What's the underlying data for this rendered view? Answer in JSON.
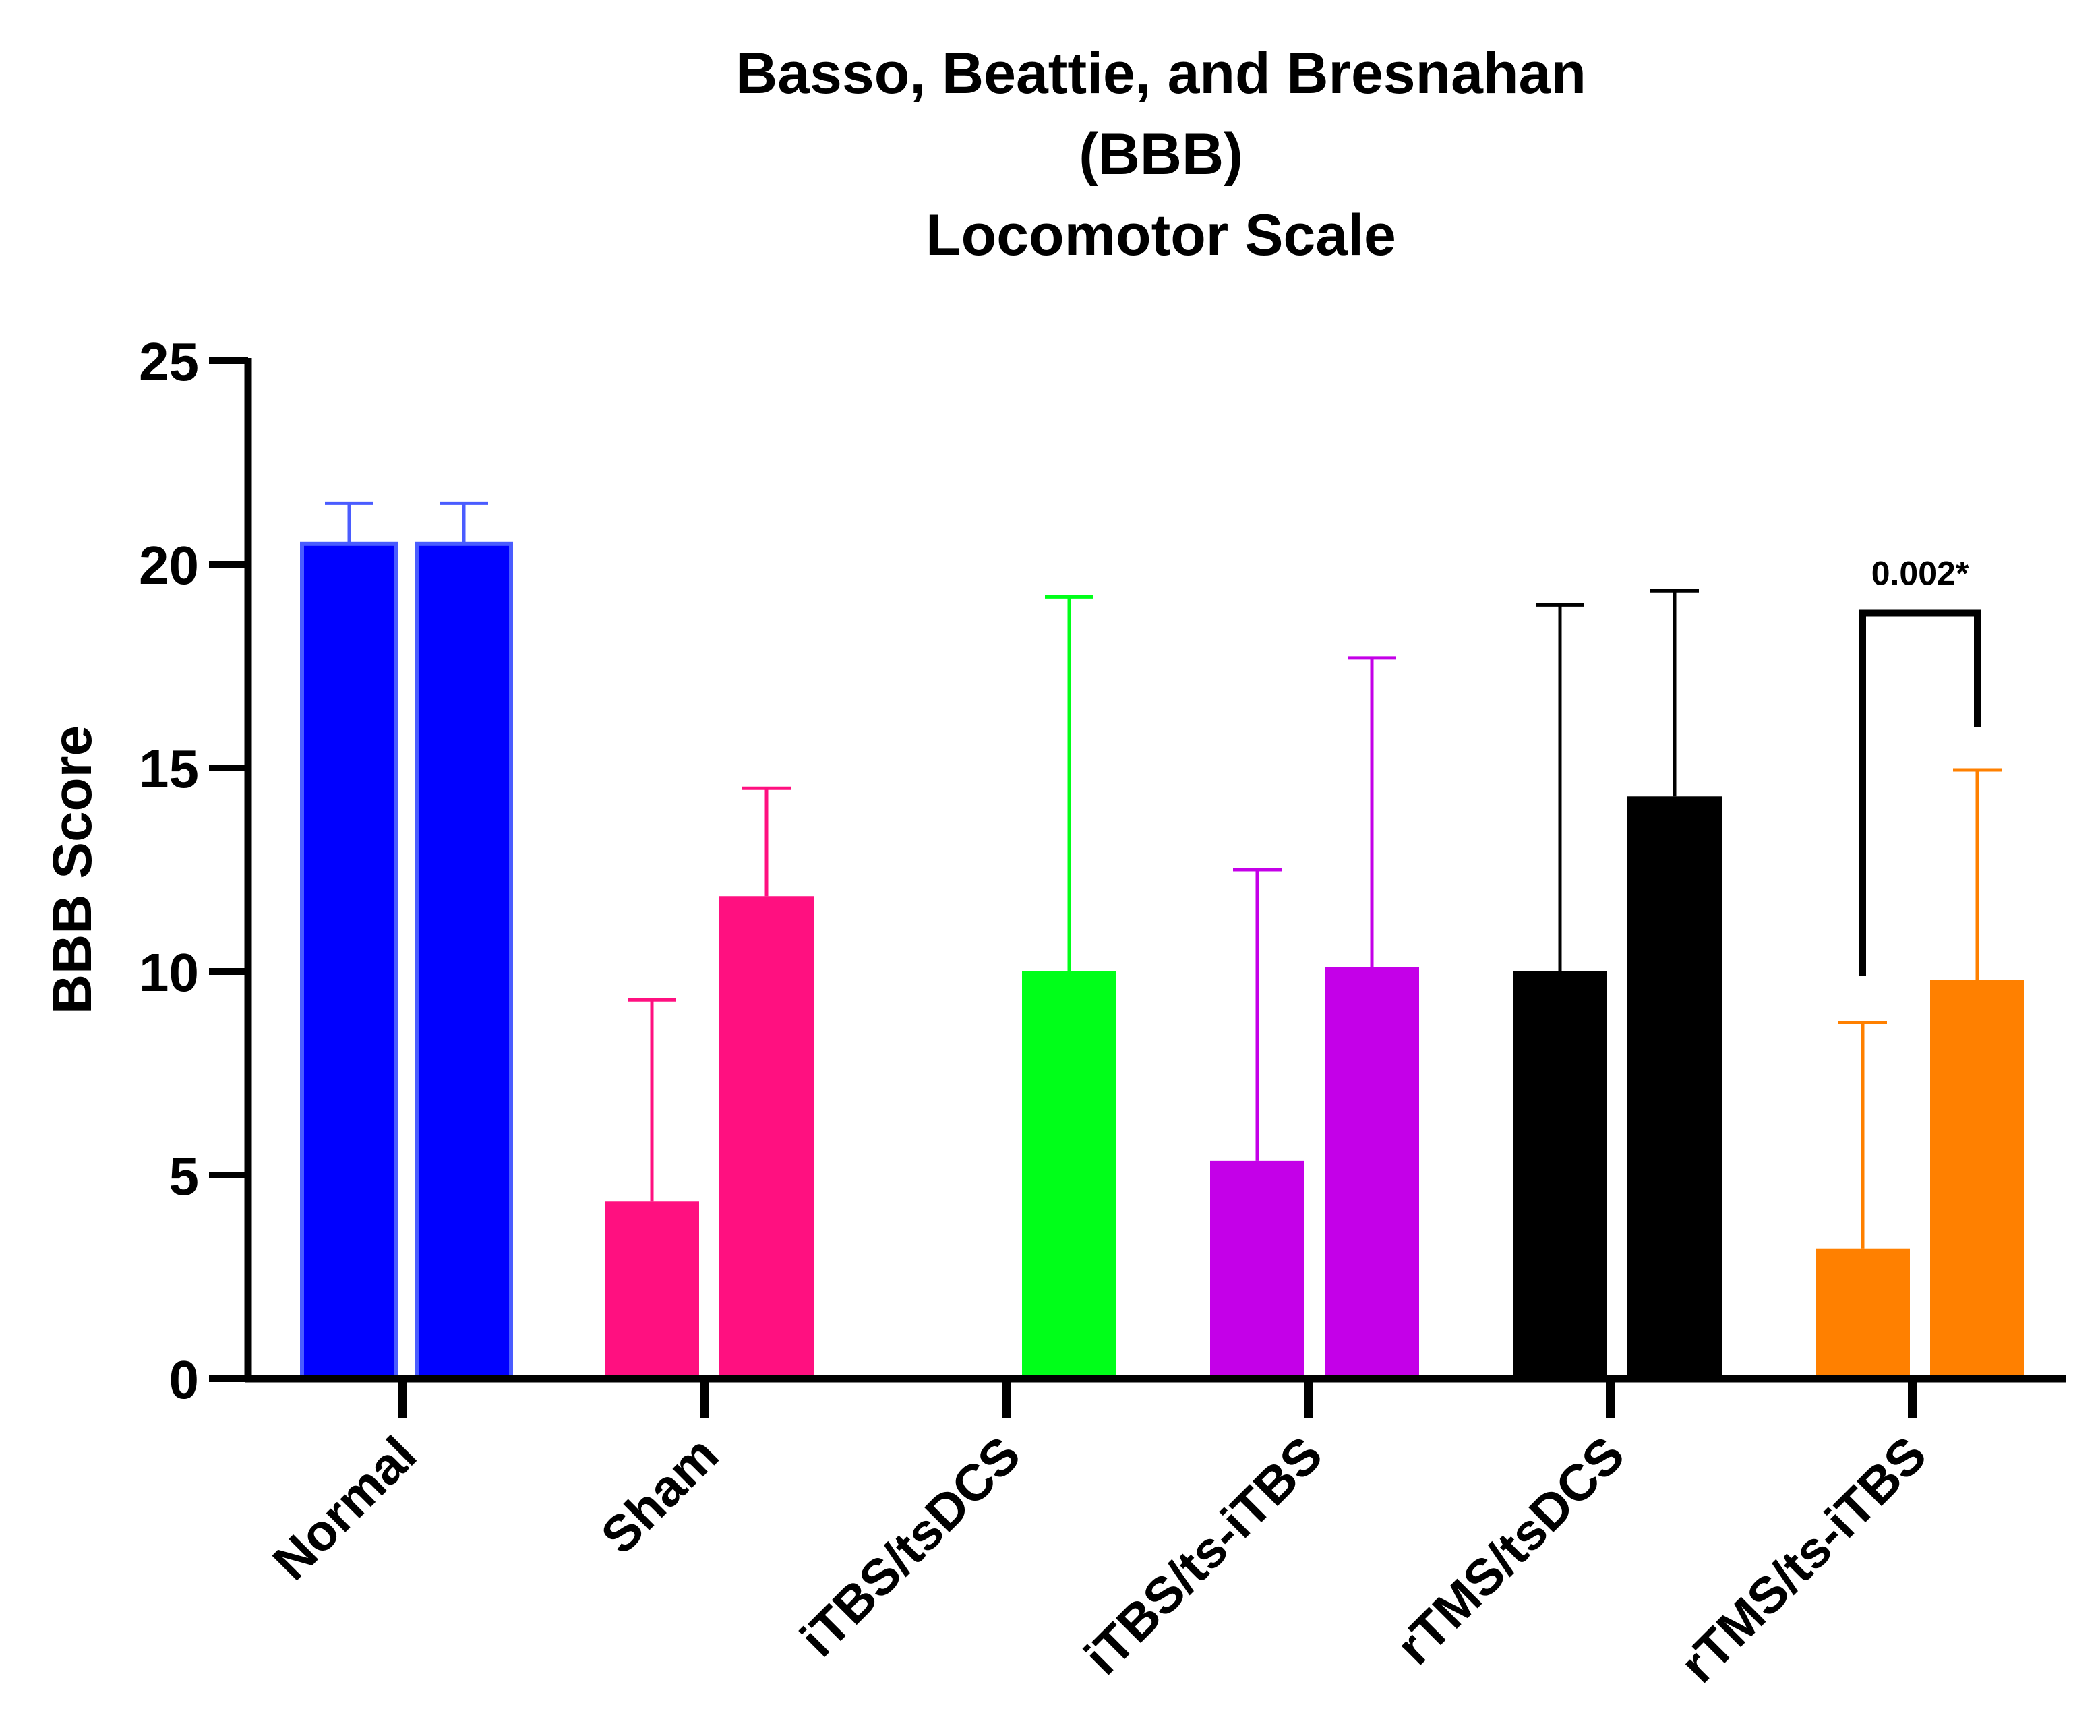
{
  "chart_data": {
    "type": "bar",
    "title": [
      "Basso, Beattie, and Bresnahan",
      "(BBB)",
      "Locomotor Scale"
    ],
    "ylabel": "BBB Score",
    "xlabel": "",
    "ylim": [
      0,
      25
    ],
    "yticks": [
      0,
      5,
      10,
      15,
      20,
      25
    ],
    "grid": false,
    "groups": [
      {
        "label": "Normal",
        "color": "#0000ff",
        "bars": [
          {
            "value": 20.5,
            "err": 1.0
          },
          {
            "value": 20.5,
            "err": 1.0
          }
        ]
      },
      {
        "label": "Sham",
        "color": "#ff1080",
        "bars": [
          {
            "value": 4.35,
            "err": 4.95
          },
          {
            "value": 11.85,
            "err": 2.65
          }
        ]
      },
      {
        "label": "iTBS/tsDCS",
        "color": "#00ff19",
        "bars": [
          {
            "value": 0,
            "err": 0
          },
          {
            "value": 10.0,
            "err": 9.2
          }
        ]
      },
      {
        "label": "iTBS/ts-iTBS",
        "color": "#c400e8",
        "bars": [
          {
            "value": 5.35,
            "err": 7.15
          },
          {
            "value": 10.1,
            "err": 7.6
          }
        ]
      },
      {
        "label": "rTMS/tsDCS",
        "color": "#000000",
        "bars": [
          {
            "value": 10.0,
            "err": 9.0
          },
          {
            "value": 14.3,
            "err": 5.05
          }
        ]
      },
      {
        "label": "rTMS/ts-iTBS",
        "color": "#ff8000",
        "bars": [
          {
            "value": 3.2,
            "err": 5.55
          },
          {
            "value": 9.8,
            "err": 5.15
          }
        ]
      }
    ],
    "annotations": [
      {
        "text": "0.002*",
        "group": 5,
        "from_bar": 0,
        "to_bar": 1,
        "y_top": 18.8,
        "y_left": 9.9,
        "y_right": 16.0
      }
    ]
  }
}
